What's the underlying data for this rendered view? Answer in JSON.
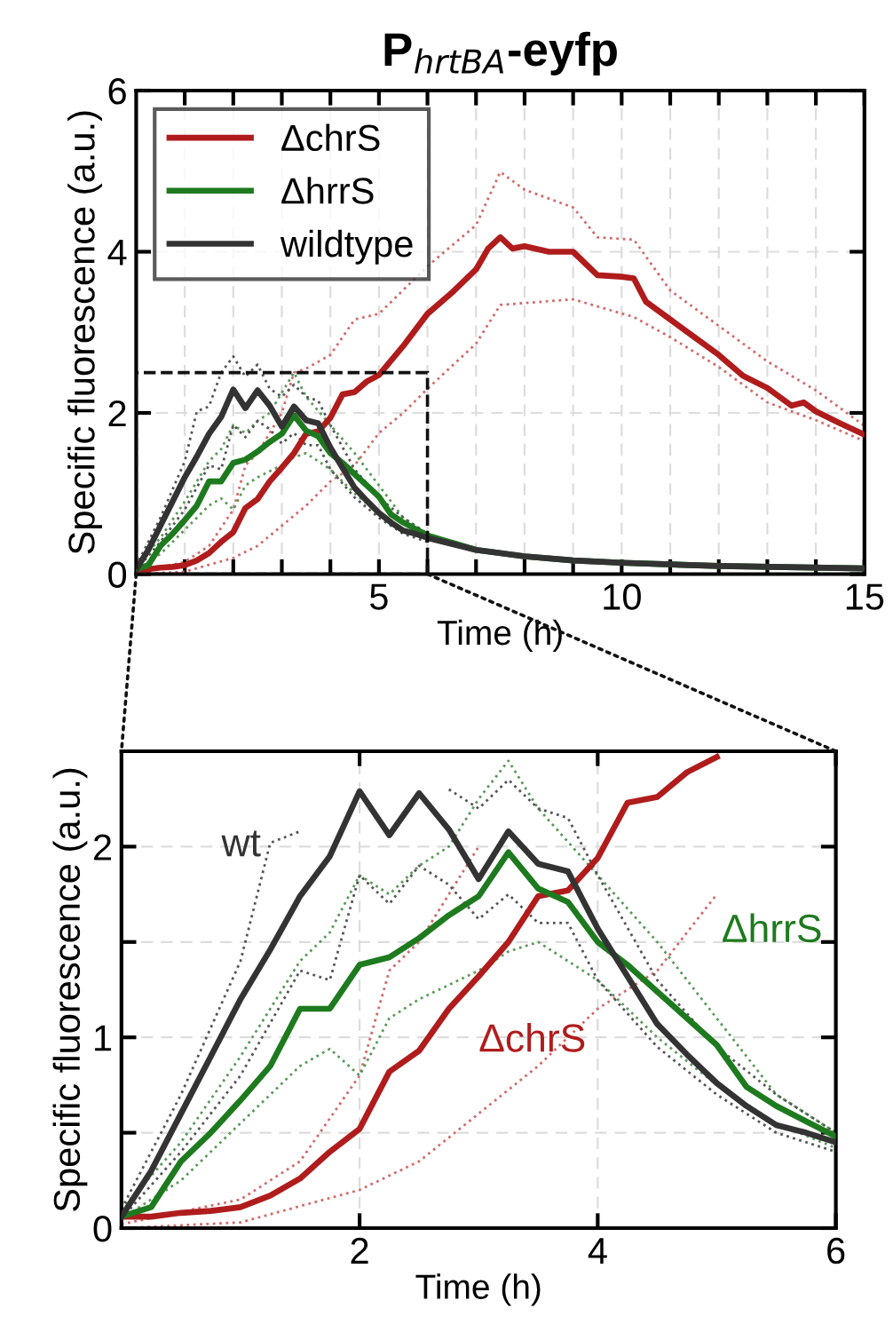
{
  "chart_data": [
    {
      "type": "line",
      "title": "P$_{hrtBA}$-eyfp",
      "xlabel": "Time (h)",
      "ylabel": "Specific fluorescence (a.u.)",
      "xlim": [
        0,
        15
      ],
      "ylim": [
        0,
        6
      ],
      "xticks": [
        {
          "value": 1,
          "label": null
        },
        {
          "value": 2,
          "label": null
        },
        {
          "value": 3,
          "label": null
        },
        {
          "value": 4,
          "label": null
        },
        5,
        {
          "value": 6,
          "label": null
        },
        {
          "value": 7,
          "label": null
        },
        {
          "value": 8,
          "label": null
        },
        {
          "value": 9,
          "label": null
        },
        10,
        {
          "value": 11,
          "label": null
        },
        {
          "value": 12,
          "label": null
        },
        {
          "value": 13,
          "label": null
        },
        {
          "value": 14,
          "label": null
        },
        15
      ],
      "yticks": [
        0,
        2,
        4,
        6
      ],
      "grid": true,
      "legend": "top left",
      "series": [
        {
          "name": "ΔchrS",
          "color": "#b01c1c",
          "x": [
            0,
            0.25,
            0.5,
            0.75,
            1,
            1.25,
            1.5,
            1.75,
            2,
            2.25,
            2.5,
            2.75,
            3,
            3.25,
            3.5,
            3.75,
            4,
            4.25,
            4.5,
            4.75,
            5,
            5.5,
            6,
            6.5,
            7,
            7.25,
            7.5,
            7.75,
            8,
            8.5,
            9,
            9.5,
            10,
            10.25,
            10.5,
            11,
            11.5,
            12,
            12.5,
            13,
            13.5,
            13.75,
            14,
            14.5,
            15
          ],
          "values": [
            0.06,
            0.06,
            0.08,
            0.09,
            0.11,
            0.17,
            0.26,
            0.4,
            0.52,
            0.82,
            0.93,
            1.15,
            1.32,
            1.5,
            1.74,
            1.77,
            1.94,
            2.23,
            2.26,
            2.39,
            2.47,
            2.83,
            3.23,
            3.49,
            3.78,
            4.04,
            4.18,
            4.04,
            4.07,
            4.0,
            4.0,
            3.71,
            3.69,
            3.67,
            3.38,
            3.16,
            2.94,
            2.72,
            2.46,
            2.31,
            2.09,
            2.13,
            2.02,
            1.87,
            1.73
          ]
        },
        {
          "name": "ΔhrrS",
          "color": "#1e7a1e",
          "x": [
            0,
            0.25,
            0.5,
            0.75,
            1,
            1.25,
            1.5,
            1.75,
            2,
            2.25,
            2.5,
            2.75,
            3,
            3.25,
            3.5,
            3.75,
            4,
            4.25,
            4.5,
            4.75,
            5,
            5.25,
            5.5,
            5.75,
            6,
            7,
            8,
            9,
            10,
            12,
            15
          ],
          "values": [
            0.06,
            0.11,
            0.35,
            0.5,
            0.67,
            0.85,
            1.15,
            1.15,
            1.38,
            1.42,
            1.52,
            1.64,
            1.74,
            1.97,
            1.78,
            1.71,
            1.5,
            1.38,
            1.24,
            1.1,
            0.96,
            0.74,
            0.64,
            0.56,
            0.48,
            0.3,
            0.22,
            0.17,
            0.14,
            0.1,
            0.07
          ]
        },
        {
          "name": "wildtype",
          "color": "#333333",
          "x": [
            0,
            0.25,
            0.5,
            0.75,
            1,
            1.25,
            1.5,
            1.75,
            2,
            2.25,
            2.5,
            2.75,
            3,
            3.25,
            3.5,
            3.75,
            4,
            4.25,
            4.5,
            4.75,
            5,
            5.25,
            5.5,
            5.75,
            6,
            7,
            8,
            9,
            10,
            12,
            15
          ],
          "values": [
            0.06,
            0.3,
            0.6,
            0.9,
            1.2,
            1.46,
            1.74,
            1.95,
            2.29,
            2.06,
            2.28,
            2.09,
            1.83,
            2.08,
            1.91,
            1.87,
            1.57,
            1.32,
            1.07,
            0.91,
            0.76,
            0.64,
            0.54,
            0.5,
            0.45,
            0.3,
            0.22,
            0.17,
            0.14,
            0.1,
            0.07
          ]
        },
        {
          "color": "#d46a6a",
          "line_style": "dotted",
          "x": [
            0,
            1,
            1.5,
            2,
            2.25,
            2.5,
            3,
            3.25,
            3.5,
            4,
            4.5,
            5,
            6,
            7,
            7.5,
            8,
            9,
            9.5,
            10.25,
            11,
            12,
            13,
            14,
            15
          ],
          "values": [
            0.02,
            0.15,
            0.35,
            0.8,
            1.35,
            1.5,
            2.0,
            2.5,
            2.55,
            2.72,
            3.16,
            3.23,
            3.82,
            4.33,
            4.99,
            4.77,
            4.55,
            4.18,
            4.15,
            3.52,
            3.08,
            2.64,
            2.28,
            1.84
          ]
        },
        {
          "color": "#d46a6a",
          "line_style": "dotted",
          "x": [
            0,
            1,
            2,
            2.5,
            3,
            3.5,
            4,
            4.5,
            5,
            5.5,
            6,
            7,
            7.5,
            9,
            10.25,
            11,
            12,
            13,
            14,
            15
          ],
          "values": [
            0.0,
            0.03,
            0.2,
            0.35,
            0.6,
            0.85,
            1.15,
            1.35,
            1.75,
            2.0,
            2.3,
            2.86,
            3.34,
            3.41,
            3.19,
            2.94,
            2.57,
            2.13,
            1.91,
            1.65
          ]
        },
        {
          "color": "#5a9a5a",
          "line_style": "dotted",
          "x": [
            0,
            0.5,
            1,
            1.5,
            1.75,
            2,
            2.25,
            2.5,
            2.75,
            3,
            3.25,
            3.5,
            4,
            4.5,
            5,
            5.5,
            6
          ],
          "values": [
            0.1,
            0.45,
            0.9,
            1.4,
            1.55,
            1.85,
            1.75,
            1.9,
            2.0,
            2.25,
            2.5,
            2.2,
            1.85,
            1.5,
            1.1,
            0.7,
            0.5
          ]
        },
        {
          "color": "#5a9a5a",
          "line_style": "dotted",
          "x": [
            0,
            0.5,
            1,
            1.5,
            1.75,
            2,
            2.25,
            2.5,
            3,
            3.25,
            3.5,
            4,
            4.5,
            5,
            5.5,
            6
          ],
          "values": [
            0.05,
            0.25,
            0.55,
            0.85,
            0.94,
            0.8,
            1.1,
            1.2,
            1.35,
            1.45,
            1.5,
            1.3,
            1.0,
            0.75,
            0.55,
            0.42
          ]
        },
        {
          "color": "#555555",
          "line_style": "dotted",
          "x": [
            0,
            0.5,
            1,
            1.25,
            1.5,
            1.75,
            2,
            2.25,
            2.5,
            2.75,
            3,
            3.25,
            3.5,
            3.75,
            4,
            4.5,
            5,
            5.5,
            6
          ],
          "values": [
            0.1,
            0.7,
            1.4,
            2.02,
            2.08,
            2.5,
            2.7,
            2.45,
            2.6,
            2.3,
            2.2,
            2.35,
            2.2,
            2.15,
            1.85,
            1.3,
            0.95,
            0.7,
            0.5
          ]
        },
        {
          "color": "#555555",
          "line_style": "dotted",
          "x": [
            0,
            0.5,
            1,
            1.5,
            1.75,
            2,
            2.25,
            2.5,
            2.75,
            3,
            3.25,
            3.5,
            3.75,
            4,
            4.5,
            5,
            5.5,
            6
          ],
          "values": [
            0.05,
            0.4,
            0.8,
            1.35,
            1.3,
            1.85,
            1.7,
            1.9,
            1.8,
            1.62,
            1.75,
            1.6,
            1.6,
            1.3,
            0.95,
            0.7,
            0.5,
            0.4
          ]
        }
      ]
    },
    {
      "type": "line",
      "xlabel": "Time (h)",
      "ylabel": "Specific fluorescence (a.u.)",
      "xlim": [
        0,
        6
      ],
      "ylim": [
        0,
        2.5
      ],
      "xticks": [
        2,
        4,
        6
      ],
      "yticks": [
        0,
        {
          "value": 0.5,
          "label": null
        },
        1,
        {
          "value": 1.5,
          "label": null
        },
        2
      ],
      "grid": true,
      "series": [
        {
          "name": "ΔchrS",
          "color": "#b01c1c",
          "x": [
            0,
            0.25,
            0.5,
            0.75,
            1,
            1.25,
            1.5,
            1.75,
            2,
            2.25,
            2.5,
            2.75,
            3,
            3.25,
            3.5,
            3.75,
            4,
            4.25,
            4.5,
            4.75,
            5
          ],
          "values": [
            0.06,
            0.06,
            0.08,
            0.09,
            0.11,
            0.17,
            0.26,
            0.4,
            0.52,
            0.82,
            0.93,
            1.15,
            1.32,
            1.5,
            1.74,
            1.77,
            1.94,
            2.23,
            2.26,
            2.39,
            2.47
          ]
        },
        {
          "name": "ΔhrrS",
          "color": "#1e7a1e",
          "x": [
            0,
            0.25,
            0.5,
            0.75,
            1,
            1.25,
            1.5,
            1.75,
            2,
            2.25,
            2.5,
            2.75,
            3,
            3.25,
            3.5,
            3.75,
            4,
            4.25,
            4.5,
            4.75,
            5,
            5.25,
            5.5,
            5.75,
            6
          ],
          "values": [
            0.06,
            0.11,
            0.35,
            0.5,
            0.67,
            0.85,
            1.15,
            1.15,
            1.38,
            1.42,
            1.52,
            1.64,
            1.74,
            1.97,
            1.78,
            1.71,
            1.5,
            1.38,
            1.24,
            1.1,
            0.96,
            0.74,
            0.64,
            0.56,
            0.48
          ]
        },
        {
          "name": "wt",
          "color": "#333333",
          "x": [
            0,
            0.25,
            0.5,
            0.75,
            1,
            1.25,
            1.5,
            1.75,
            2,
            2.25,
            2.5,
            2.75,
            3,
            3.25,
            3.5,
            3.75,
            4,
            4.25,
            4.5,
            4.75,
            5,
            5.25,
            5.5,
            5.75,
            6
          ],
          "values": [
            0.06,
            0.3,
            0.6,
            0.9,
            1.2,
            1.46,
            1.74,
            1.95,
            2.29,
            2.06,
            2.28,
            2.09,
            1.83,
            2.08,
            1.91,
            1.87,
            1.57,
            1.32,
            1.07,
            0.91,
            0.76,
            0.64,
            0.54,
            0.5,
            0.45
          ]
        },
        {
          "color": "#d46a6a",
          "line_style": "dotted",
          "x": [
            0,
            1,
            1.5,
            2,
            2.25,
            2.5,
            3
          ],
          "values": [
            0.02,
            0.15,
            0.35,
            0.8,
            1.35,
            1.5,
            2.0
          ]
        },
        {
          "color": "#d46a6a",
          "line_style": "dotted",
          "x": [
            0,
            1,
            2,
            2.5,
            3,
            3.5,
            4,
            4.5,
            5
          ],
          "values": [
            0.0,
            0.03,
            0.2,
            0.35,
            0.6,
            0.85,
            1.15,
            1.35,
            1.75
          ]
        },
        {
          "color": "#5a9a5a",
          "line_style": "dotted",
          "x": [
            0,
            0.5,
            1,
            1.5,
            1.75,
            2,
            2.25,
            2.5,
            2.75,
            3,
            3.25,
            3.5,
            4,
            4.5,
            5,
            5.5,
            6
          ],
          "values": [
            0.1,
            0.45,
            0.9,
            1.4,
            1.55,
            1.85,
            1.75,
            1.9,
            2.0,
            2.25,
            2.45,
            2.2,
            1.85,
            1.5,
            1.1,
            0.7,
            0.5
          ]
        },
        {
          "color": "#5a9a5a",
          "line_style": "dotted",
          "x": [
            0,
            0.5,
            1,
            1.5,
            1.75,
            2,
            2.25,
            2.5,
            3,
            3.25,
            3.5,
            4,
            4.5,
            5,
            5.5,
            6
          ],
          "values": [
            0.05,
            0.25,
            0.55,
            0.85,
            0.94,
            0.8,
            1.1,
            1.2,
            1.35,
            1.45,
            1.5,
            1.3,
            1.0,
            0.75,
            0.55,
            0.42
          ]
        },
        {
          "color": "#555555",
          "line_style": "dotted",
          "x": [
            0,
            0.5,
            1,
            1.25,
            1.5
          ],
          "values": [
            0.1,
            0.7,
            1.4,
            2.02,
            2.08
          ]
        },
        {
          "color": "#555555",
          "line_style": "dotted",
          "x": [
            2.75,
            3,
            3.25,
            3.5,
            3.75,
            4,
            4.5,
            5,
            5.5,
            6
          ],
          "values": [
            2.3,
            2.2,
            2.35,
            2.2,
            2.15,
            1.85,
            1.3,
            0.95,
            0.7,
            0.5
          ]
        },
        {
          "color": "#555555",
          "line_style": "dotted",
          "x": [
            0,
            0.5,
            1,
            1.5,
            1.75,
            2,
            2.25,
            2.5,
            2.75,
            3,
            3.25,
            3.5,
            3.75,
            4,
            4.5,
            5,
            5.5,
            6
          ],
          "values": [
            0.05,
            0.4,
            0.8,
            1.35,
            1.3,
            1.85,
            1.7,
            1.9,
            1.8,
            1.62,
            1.75,
            1.6,
            1.6,
            1.3,
            0.95,
            0.7,
            0.5,
            0.4
          ]
        }
      ]
    }
  ]
}
